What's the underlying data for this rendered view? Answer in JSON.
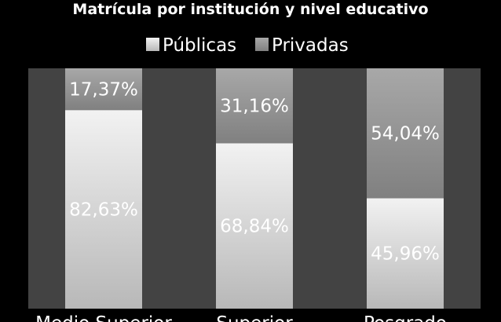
{
  "chart_data": {
    "type": "bar",
    "stacked": true,
    "percent": true,
    "title": "Matrícula por institución y nivel educativo",
    "categories": [
      "Medio Superior",
      "Superior",
      "Posgrado"
    ],
    "series": [
      {
        "name": "Públicas",
        "values": [
          82.63,
          68.84,
          45.96
        ],
        "labels": [
          "82,63%",
          "68,84%",
          "45,96%"
        ],
        "color": "#e6e6e6"
      },
      {
        "name": "Privadas",
        "values": [
          17.37,
          31.16,
          54.04
        ],
        "labels": [
          "17,37%",
          "31,16%",
          "54,04%"
        ],
        "color": "#9a9a9a"
      }
    ],
    "ylim": [
      0,
      100
    ],
    "legend": "top",
    "grid": false,
    "plot_background": "#434343"
  }
}
